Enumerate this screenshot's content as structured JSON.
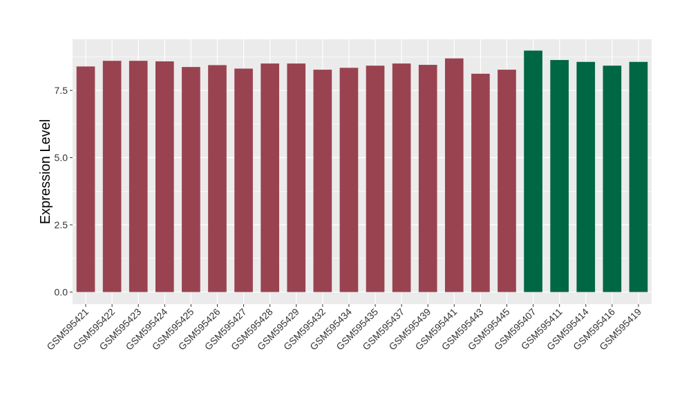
{
  "chart_data": {
    "type": "bar",
    "title": "",
    "xlabel": "",
    "ylabel": "Expression Level",
    "ylim": [
      -0.45,
      9.4
    ],
    "yticks": [
      0.0,
      2.5,
      5.0,
      7.5
    ],
    "ytick_labels": [
      "0.0",
      "2.5",
      "5.0",
      "7.5"
    ],
    "grid": true,
    "legend": "none",
    "panel_background": "#ebebeb",
    "categories": [
      "GSM595421",
      "GSM595422",
      "GSM595423",
      "GSM595424",
      "GSM595425",
      "GSM595426",
      "GSM595427",
      "GSM595428",
      "GSM595429",
      "GSM595432",
      "GSM595434",
      "GSM595435",
      "GSM595437",
      "GSM595439",
      "GSM595441",
      "GSM595443",
      "GSM595445",
      "GSM595407",
      "GSM595411",
      "GSM595414",
      "GSM595416",
      "GSM595419"
    ],
    "values": [
      8.39,
      8.6,
      8.6,
      8.58,
      8.37,
      8.44,
      8.31,
      8.5,
      8.5,
      8.27,
      8.34,
      8.42,
      8.5,
      8.45,
      8.69,
      8.12,
      8.27,
      8.98,
      8.63,
      8.56,
      8.42,
      8.56
    ],
    "groups": [
      "a",
      "a",
      "a",
      "a",
      "a",
      "a",
      "a",
      "a",
      "a",
      "a",
      "a",
      "a",
      "a",
      "a",
      "a",
      "a",
      "a",
      "b",
      "b",
      "b",
      "b",
      "b"
    ],
    "group_colors": {
      "a": "#9a4350",
      "b": "#006744"
    }
  }
}
